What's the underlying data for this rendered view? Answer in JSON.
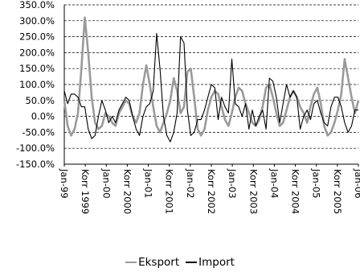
{
  "chart_data": {
    "type": "line",
    "y_ticks": [
      "350.0%",
      "300.0%",
      "250.0%",
      "200.0%",
      "150.0%",
      "100.0%",
      "50.0%",
      "0.0%",
      "-50.0%",
      "-100.0%",
      "-150.0%"
    ],
    "ylim": [
      -150,
      350
    ],
    "grid": true,
    "legend_position": "bottom",
    "x_tick_labels": [
      "Jan-99",
      "Korr 1999",
      "Jan-00",
      "Korr 2000",
      "Jan-01",
      "Korr 2001",
      "Jan-02",
      "Korr 2002",
      "Jan-03",
      "Korr 2003",
      "Jan-04",
      "Korr 2004",
      "Jan-05",
      "Korr 2005",
      "Jan-06"
    ],
    "series": [
      {
        "name": "Eksport",
        "color": "#9a9a9a",
        "x": [
          1999.0,
          1999.083,
          1999.167,
          1999.25,
          1999.333,
          1999.417,
          1999.5,
          1999.583,
          1999.667,
          1999.75,
          1999.833,
          1999.917,
          2000.0,
          2000.083,
          2000.167,
          2000.25,
          2000.333,
          2000.417,
          2000.5,
          2000.583,
          2000.667,
          2000.75,
          2000.833,
          2000.917,
          2001.0,
          2001.083,
          2001.167,
          2001.25,
          2001.333,
          2001.417,
          2001.5,
          2001.583,
          2001.667,
          2001.75,
          2001.833,
          2001.917,
          2002.0,
          2002.083,
          2002.167,
          2002.25,
          2002.333,
          2002.417,
          2002.5,
          2002.583,
          2002.667,
          2002.75,
          2002.833,
          2002.917,
          2003.0,
          2003.083,
          2003.167,
          2003.25,
          2003.333,
          2003.417,
          2003.5,
          2003.583,
          2003.667,
          2003.75,
          2003.833,
          2003.917,
          2004.0,
          2004.083,
          2004.167,
          2004.25,
          2004.333,
          2004.417,
          2004.5,
          2004.583,
          2004.667,
          2004.75,
          2004.833,
          2004.917,
          2005.0,
          2005.083,
          2005.167,
          2005.25,
          2005.333,
          2005.417,
          2005.5,
          2005.583,
          2005.667,
          2005.75,
          2005.833,
          2005.917,
          2006.0,
          2006.083,
          2006.167
        ],
        "values": [
          50,
          -30,
          -60,
          -40,
          10,
          150,
          310,
          200,
          60,
          -20,
          -40,
          -30,
          10,
          0,
          -20,
          -30,
          10,
          30,
          50,
          40,
          0,
          -20,
          10,
          100,
          160,
          100,
          30,
          -30,
          -50,
          -20,
          10,
          50,
          120,
          80,
          10,
          30,
          140,
          150,
          60,
          -40,
          -60,
          -40,
          20,
          60,
          80,
          70,
          30,
          -10,
          -30,
          10,
          60,
          90,
          80,
          40,
          10,
          -20,
          -30,
          -10,
          30,
          90,
          100,
          60,
          10,
          -30,
          -20,
          20,
          60,
          80,
          60,
          30,
          10,
          -20,
          30,
          70,
          90,
          40,
          -30,
          -60,
          -50,
          -20,
          20,
          70,
          180,
          120,
          60,
          10,
          50
        ]
      },
      {
        "name": "Import",
        "color": "#000000",
        "x": [
          1999.0,
          1999.083,
          1999.167,
          1999.25,
          1999.333,
          1999.417,
          1999.5,
          1999.583,
          1999.667,
          1999.75,
          1999.833,
          1999.917,
          2000.0,
          2000.083,
          2000.167,
          2000.25,
          2000.333,
          2000.417,
          2000.5,
          2000.583,
          2000.667,
          2000.75,
          2000.833,
          2000.917,
          2001.0,
          2001.083,
          2001.167,
          2001.25,
          2001.333,
          2001.417,
          2001.5,
          2001.583,
          2001.667,
          2001.75,
          2001.833,
          2001.917,
          2002.0,
          2002.083,
          2002.167,
          2002.25,
          2002.333,
          2002.417,
          2002.5,
          2002.583,
          2002.667,
          2002.75,
          2002.833,
          2002.917,
          2003.0,
          2003.083,
          2003.167,
          2003.25,
          2003.333,
          2003.417,
          2003.5,
          2003.583,
          2003.667,
          2003.75,
          2003.833,
          2003.917,
          2004.0,
          2004.083,
          2004.167,
          2004.25,
          2004.333,
          2004.417,
          2004.5,
          2004.583,
          2004.667,
          2004.75,
          2004.833,
          2004.917,
          2005.0,
          2005.083,
          2005.167,
          2005.25,
          2005.333,
          2005.417,
          2005.5,
          2005.583,
          2005.667,
          2005.75,
          2005.833,
          2005.917,
          2006.0,
          2006.083,
          2006.167
        ],
        "values": [
          80,
          40,
          70,
          70,
          60,
          30,
          30,
          -40,
          -70,
          -60,
          0,
          50,
          20,
          -20,
          0,
          -20,
          20,
          40,
          60,
          50,
          0,
          -40,
          -60,
          0,
          30,
          40,
          80,
          260,
          150,
          0,
          -60,
          -80,
          -50,
          10,
          250,
          230,
          20,
          -60,
          -50,
          -10,
          -10,
          20,
          60,
          100,
          90,
          -10,
          60,
          30,
          10,
          180,
          40,
          30,
          0,
          40,
          -40,
          20,
          -30,
          0,
          20,
          -40,
          120,
          110,
          60,
          -20,
          40,
          100,
          60,
          80,
          60,
          -40,
          0,
          20,
          -10,
          40,
          50,
          10,
          -20,
          -30,
          30,
          60,
          60,
          30,
          -20,
          -50,
          -30,
          20,
          20
        ]
      }
    ]
  }
}
